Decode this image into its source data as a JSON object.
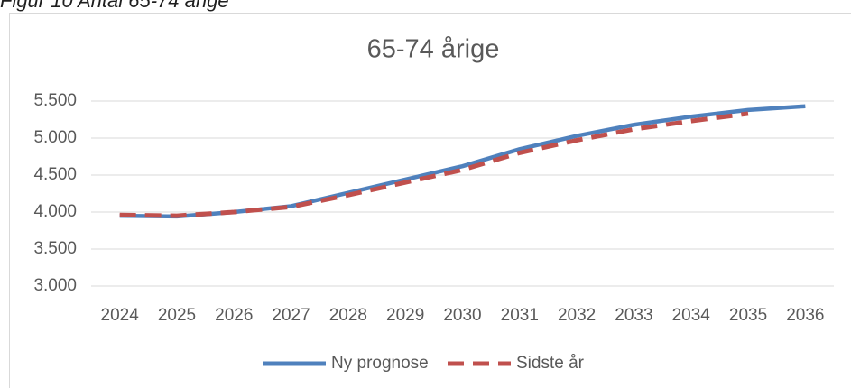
{
  "caption": "Figur 10 Antal 65-74 årige",
  "chart_data": {
    "type": "line",
    "title": "65-74 årige",
    "categories": [
      "2024",
      "2025",
      "2026",
      "2027",
      "2028",
      "2029",
      "2030",
      "2031",
      "2032",
      "2033",
      "2034",
      "2035",
      "2036"
    ],
    "series": [
      {
        "name": "Ny prognose",
        "color": "#4f81bd",
        "dash": false,
        "values": [
          3950,
          3940,
          4000,
          4080,
          4260,
          4440,
          4620,
          4850,
          5030,
          5180,
          5290,
          5380,
          5430
        ]
      },
      {
        "name": "Sidste år",
        "color": "#c0504d",
        "dash": true,
        "values": [
          3960,
          3950,
          4000,
          4070,
          4230,
          4400,
          4570,
          4800,
          4970,
          5120,
          5230,
          5330,
          null
        ]
      }
    ],
    "ylim": [
      3000,
      5500
    ],
    "yticks": [
      {
        "value": 3000,
        "label": "3.000"
      },
      {
        "value": 3500,
        "label": "3.500"
      },
      {
        "value": 4000,
        "label": "4.000"
      },
      {
        "value": 4500,
        "label": "4.500"
      },
      {
        "value": 5000,
        "label": "5.000"
      },
      {
        "value": 5500,
        "label": "5.500"
      }
    ],
    "grid": true,
    "legend": "bottom"
  }
}
